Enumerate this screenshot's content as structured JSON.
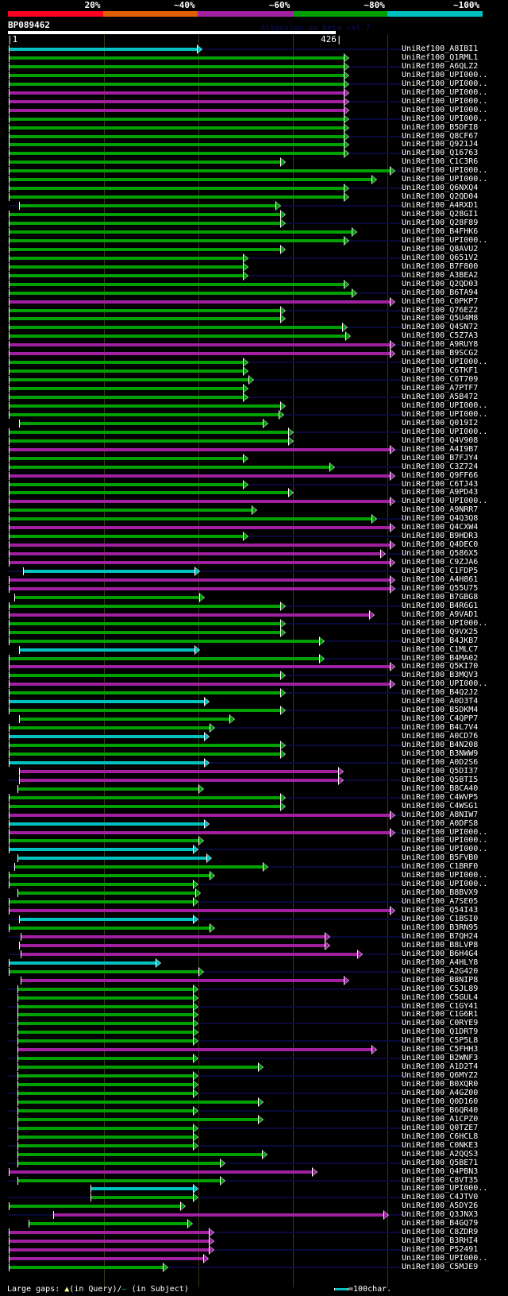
{
  "legend": {
    "labels": [
      "20%",
      "~40%",
      "~60%",
      "~80%",
      "~100%"
    ],
    "colors": [
      "#ff0020",
      "#e06000",
      "#a020a0",
      "#00a000",
      "#00c0c0"
    ]
  },
  "query": {
    "name": "BP089462",
    "start": "1",
    "end": "426",
    "length": 426
  },
  "watermark": "AlignView.pm Beta rel.7",
  "footer": {
    "gaps_label": "Large gaps:",
    "query_gap": "(in Query)/",
    "subject_gap": "(in Subject)",
    "scale_label": "=100char."
  },
  "hits": [
    {
      "name": "UniRef100_A8IBI1",
      "c": 4,
      "s": 1,
      "e": 200
    },
    {
      "name": "UniRef100_Q1RML1",
      "c": 3,
      "s": 1,
      "e": 356
    },
    {
      "name": "UniRef100_A6QLZ2",
      "c": 3,
      "s": 1,
      "e": 356
    },
    {
      "name": "UniRef100_UPI000..",
      "c": 3,
      "s": 1,
      "e": 356
    },
    {
      "name": "UniRef100_UPI000..",
      "c": 3,
      "s": 1,
      "e": 356
    },
    {
      "name": "UniRef100_UPI000..",
      "c": 2,
      "s": 1,
      "e": 356
    },
    {
      "name": "UniRef100_UPI000..",
      "c": 2,
      "s": 1,
      "e": 356
    },
    {
      "name": "UniRef100_UPI000..",
      "c": 2,
      "s": 1,
      "e": 356
    },
    {
      "name": "UniRef100_UPI000..",
      "c": 3,
      "s": 1,
      "e": 356
    },
    {
      "name": "UniRef100_B5DFI8",
      "c": 3,
      "s": 1,
      "e": 356
    },
    {
      "name": "UniRef100_Q8CF67",
      "c": 3,
      "s": 1,
      "e": 356
    },
    {
      "name": "UniRef100_Q921J4",
      "c": 3,
      "s": 1,
      "e": 356
    },
    {
      "name": "UniRef100_Q16763",
      "c": 3,
      "s": 1,
      "e": 356
    },
    {
      "name": "UniRef100_C1C3R6",
      "c": 3,
      "s": 1,
      "e": 289
    },
    {
      "name": "UniRef100_UPI000..",
      "c": 3,
      "s": 1,
      "e": 405
    },
    {
      "name": "UniRef100_UPI000..",
      "c": 3,
      "s": 1,
      "e": 385
    },
    {
      "name": "UniRef100_Q6NXQ4",
      "c": 3,
      "s": 1,
      "e": 356
    },
    {
      "name": "UniRef100_Q2QD04",
      "c": 3,
      "s": 1,
      "e": 356
    },
    {
      "name": "UniRef100_A4RXD1",
      "c": 3,
      "s": 12,
      "e": 284
    },
    {
      "name": "UniRef100_Q28GI1",
      "c": 3,
      "s": 1,
      "e": 289
    },
    {
      "name": "UniRef100_Q28F89",
      "c": 3,
      "s": 1,
      "e": 289
    },
    {
      "name": "UniRef100_B4FHK6",
      "c": 3,
      "s": 1,
      "e": 364
    },
    {
      "name": "UniRef100_UPI000..",
      "c": 3,
      "s": 1,
      "e": 356
    },
    {
      "name": "UniRef100_Q8AVU2",
      "c": 3,
      "s": 1,
      "e": 289
    },
    {
      "name": "UniRef100_Q651V2",
      "c": 3,
      "s": 1,
      "e": 249
    },
    {
      "name": "UniRef100_B7F800",
      "c": 3,
      "s": 1,
      "e": 249
    },
    {
      "name": "UniRef100_A3BEA2",
      "c": 3,
      "s": 1,
      "e": 249
    },
    {
      "name": "UniRef100_Q2QD03",
      "c": 3,
      "s": 1,
      "e": 356
    },
    {
      "name": "UniRef100_B6TA94",
      "c": 3,
      "s": 1,
      "e": 364
    },
    {
      "name": "UniRef100_C0PKP7",
      "c": 2,
      "s": 1,
      "e": 405
    },
    {
      "name": "UniRef100_Q76EZ2",
      "c": 3,
      "s": 1,
      "e": 289
    },
    {
      "name": "UniRef100_Q5U4M8",
      "c": 3,
      "s": 1,
      "e": 289
    },
    {
      "name": "UniRef100_Q4SN72",
      "c": 3,
      "s": 1,
      "e": 354
    },
    {
      "name": "UniRef100_C5Z7A3",
      "c": 3,
      "s": 1,
      "e": 358
    },
    {
      "name": "UniRef100_A9RUY8",
      "c": 2,
      "s": 1,
      "e": 405
    },
    {
      "name": "UniRef100_B9SCG2",
      "c": 2,
      "s": 1,
      "e": 405
    },
    {
      "name": "UniRef100_UPI000..",
      "c": 3,
      "s": 1,
      "e": 249
    },
    {
      "name": "UniRef100_C6TKF1",
      "c": 3,
      "s": 1,
      "e": 249
    },
    {
      "name": "UniRef100_C6T709",
      "c": 3,
      "s": 1,
      "e": 255
    },
    {
      "name": "UniRef100_A7PTF7",
      "c": 3,
      "s": 1,
      "e": 249
    },
    {
      "name": "UniRef100_A5B472",
      "c": 3,
      "s": 1,
      "e": 249
    },
    {
      "name": "UniRef100_UPI000..",
      "c": 3,
      "s": 1,
      "e": 289
    },
    {
      "name": "UniRef100_UPI000..",
      "c": 3,
      "s": 1,
      "e": 287
    },
    {
      "name": "UniRef100_Q019I2",
      "c": 3,
      "s": 12,
      "e": 270
    },
    {
      "name": "UniRef100_UPI000..",
      "c": 3,
      "s": 1,
      "e": 297
    },
    {
      "name": "UniRef100_Q4V908",
      "c": 3,
      "s": 1,
      "e": 297
    },
    {
      "name": "UniRef100_A4I9B7",
      "c": 2,
      "s": 1,
      "e": 405
    },
    {
      "name": "UniRef100_B7FJY4",
      "c": 3,
      "s": 1,
      "e": 249
    },
    {
      "name": "UniRef100_C3Z724",
      "c": 3,
      "s": 1,
      "e": 341
    },
    {
      "name": "UniRef100_Q9FF66",
      "c": 2,
      "s": 1,
      "e": 405
    },
    {
      "name": "UniRef100_C6TJ43",
      "c": 3,
      "s": 1,
      "e": 249
    },
    {
      "name": "UniRef100_A9PD43",
      "c": 3,
      "s": 1,
      "e": 297
    },
    {
      "name": "UniRef100_UPI000..",
      "c": 2,
      "s": 1,
      "e": 405
    },
    {
      "name": "UniRef100_A9NRR7",
      "c": 3,
      "s": 1,
      "e": 258
    },
    {
      "name": "UniRef100_Q4Q3Q8",
      "c": 3,
      "s": 1,
      "e": 385
    },
    {
      "name": "UniRef100_Q4CXW4",
      "c": 2,
      "s": 1,
      "e": 405
    },
    {
      "name": "UniRef100_B9HDR3",
      "c": 3,
      "s": 1,
      "e": 249
    },
    {
      "name": "UniRef100_Q4DEC0",
      "c": 2,
      "s": 1,
      "e": 405
    },
    {
      "name": "UniRef100_Q586X5",
      "c": 2,
      "s": 1,
      "e": 395
    },
    {
      "name": "UniRef100_C9ZJA6",
      "c": 2,
      "s": 1,
      "e": 405
    },
    {
      "name": "UniRef100_C1FDP5",
      "c": 4,
      "s": 16,
      "e": 198
    },
    {
      "name": "UniRef100_A4H861",
      "c": 2,
      "s": 1,
      "e": 405
    },
    {
      "name": "UniRef100_Q55U75",
      "c": 2,
      "s": 1,
      "e": 405
    },
    {
      "name": "UniRef100_B7GBG8",
      "c": 3,
      "s": 7,
      "e": 203
    },
    {
      "name": "UniRef100_B4R6G1",
      "c": 3,
      "s": 1,
      "e": 289
    },
    {
      "name": "UniRef100_A9VAD1",
      "c": 2,
      "s": 1,
      "e": 383
    },
    {
      "name": "UniRef100_UPI000..",
      "c": 3,
      "s": 1,
      "e": 289
    },
    {
      "name": "UniRef100_Q9VX25",
      "c": 3,
      "s": 1,
      "e": 289
    },
    {
      "name": "UniRef100_B4JKB7",
      "c": 3,
      "s": 1,
      "e": 330
    },
    {
      "name": "UniRef100_C1MLC7",
      "c": 4,
      "s": 12,
      "e": 198
    },
    {
      "name": "UniRef100_B4MA02",
      "c": 3,
      "s": 1,
      "e": 330
    },
    {
      "name": "UniRef100_Q5KI70",
      "c": 2,
      "s": 1,
      "e": 405
    },
    {
      "name": "UniRef100_B3MQV3",
      "c": 3,
      "s": 1,
      "e": 289
    },
    {
      "name": "UniRef100_UPI000..",
      "c": 2,
      "s": 1,
      "e": 405
    },
    {
      "name": "UniRef100_B4Q2J2",
      "c": 3,
      "s": 1,
      "e": 289
    },
    {
      "name": "UniRef100_A0D3T4",
      "c": 4,
      "s": 1,
      "e": 208
    },
    {
      "name": "UniRef100_B5DKM4",
      "c": 3,
      "s": 1,
      "e": 289
    },
    {
      "name": "UniRef100_C4QPP7",
      "c": 3,
      "s": 12,
      "e": 235
    },
    {
      "name": "UniRef100_B4L7V4",
      "c": 3,
      "s": 1,
      "e": 214
    },
    {
      "name": "UniRef100_A0CD76",
      "c": 4,
      "s": 1,
      "e": 208
    },
    {
      "name": "UniRef100_B4N208",
      "c": 3,
      "s": 1,
      "e": 289
    },
    {
      "name": "UniRef100_B3NWW9",
      "c": 3,
      "s": 1,
      "e": 289
    },
    {
      "name": "UniRef100_A0D2S6",
      "c": 4,
      "s": 1,
      "e": 208
    },
    {
      "name": "UniRef100_Q5DI37",
      "c": 2,
      "s": 12,
      "e": 350
    },
    {
      "name": "UniRef100_Q5BTI5",
      "c": 2,
      "s": 12,
      "e": 350
    },
    {
      "name": "UniRef100_B8CA40",
      "c": 3,
      "s": 10,
      "e": 202
    },
    {
      "name": "UniRef100_C4WVP5",
      "c": 3,
      "s": 1,
      "e": 289
    },
    {
      "name": "UniRef100_C4WSG1",
      "c": 3,
      "s": 1,
      "e": 289
    },
    {
      "name": "UniRef100_A8NIW7",
      "c": 2,
      "s": 1,
      "e": 405
    },
    {
      "name": "UniRef100_A0DFS8",
      "c": 4,
      "s": 1,
      "e": 208
    },
    {
      "name": "UniRef100_UPI000..",
      "c": 2,
      "s": 1,
      "e": 405
    },
    {
      "name": "UniRef100_UPI000..",
      "c": 3,
      "s": 1,
      "e": 202
    },
    {
      "name": "UniRef100_UPI000..",
      "c": 4,
      "s": 1,
      "e": 196
    },
    {
      "name": "UniRef100_B5FVB0",
      "c": 4,
      "s": 10,
      "e": 210
    },
    {
      "name": "UniRef100_C1BRF0",
      "c": 3,
      "s": 7,
      "e": 270
    },
    {
      "name": "UniRef100_UPI000..",
      "c": 3,
      "s": 1,
      "e": 214
    },
    {
      "name": "UniRef100_UPI000..",
      "c": 3,
      "s": 1,
      "e": 196
    },
    {
      "name": "UniRef100_B8BVX9",
      "c": 3,
      "s": 10,
      "e": 199
    },
    {
      "name": "UniRef100_A7SE05",
      "c": 3,
      "s": 1,
      "e": 196
    },
    {
      "name": "UniRef100_Q54I43",
      "c": 2,
      "s": 1,
      "e": 405
    },
    {
      "name": "UniRef100_C1BSI0",
      "c": 4,
      "s": 12,
      "e": 196
    },
    {
      "name": "UniRef100_B3RN95",
      "c": 3,
      "s": 1,
      "e": 214
    },
    {
      "name": "UniRef100_B7QH24",
      "c": 2,
      "s": 14,
      "e": 336
    },
    {
      "name": "UniRef100_B8LVP8",
      "c": 2,
      "s": 12,
      "e": 336
    },
    {
      "name": "UniRef100_B6H4G4",
      "c": 2,
      "s": 14,
      "e": 370
    },
    {
      "name": "UniRef100_A4HLY8",
      "c": 4,
      "s": 1,
      "e": 157
    },
    {
      "name": "UniRef100_A2G420",
      "c": 3,
      "s": 1,
      "e": 202
    },
    {
      "name": "UniRef100_B8NIP8",
      "c": 2,
      "s": 14,
      "e": 356
    },
    {
      "name": "UniRef100_C5JL89",
      "c": 3,
      "s": 10,
      "e": 196
    },
    {
      "name": "UniRef100_C5GUL4",
      "c": 3,
      "s": 10,
      "e": 196
    },
    {
      "name": "UniRef100_C1GY41",
      "c": 3,
      "s": 10,
      "e": 196
    },
    {
      "name": "UniRef100_C1G6R1",
      "c": 3,
      "s": 10,
      "e": 196
    },
    {
      "name": "UniRef100_C0RYE9",
      "c": 3,
      "s": 10,
      "e": 196
    },
    {
      "name": "UniRef100_Q1DRT9",
      "c": 3,
      "s": 10,
      "e": 196
    },
    {
      "name": "UniRef100_C5P5L8",
      "c": 3,
      "s": 10,
      "e": 196
    },
    {
      "name": "UniRef100_C5FHH3",
      "c": 2,
      "s": 10,
      "e": 385
    },
    {
      "name": "UniRef100_B2WNF3",
      "c": 3,
      "s": 10,
      "e": 196
    },
    {
      "name": "UniRef100_A1D2T4",
      "c": 3,
      "s": 10,
      "e": 265
    },
    {
      "name": "UniRef100_Q6MYZ2",
      "c": 3,
      "s": 10,
      "e": 196
    },
    {
      "name": "UniRef100_B0XQR0",
      "c": 3,
      "s": 10,
      "e": 196
    },
    {
      "name": "UniRef100_A4GZ00",
      "c": 3,
      "s": 10,
      "e": 196
    },
    {
      "name": "UniRef100_Q0D160",
      "c": 3,
      "s": 10,
      "e": 265
    },
    {
      "name": "UniRef100_B6QR40",
      "c": 3,
      "s": 10,
      "e": 196
    },
    {
      "name": "UniRef100_A1CPZ0",
      "c": 3,
      "s": 10,
      "e": 265
    },
    {
      "name": "UniRef100_Q0TZE7",
      "c": 3,
      "s": 10,
      "e": 196
    },
    {
      "name": "UniRef100_C6HCL8",
      "c": 3,
      "s": 10,
      "e": 196
    },
    {
      "name": "UniRef100_C0NKE3",
      "c": 3,
      "s": 10,
      "e": 196
    },
    {
      "name": "UniRef100_A2QQS3",
      "c": 3,
      "s": 10,
      "e": 269
    },
    {
      "name": "UniRef100_Q5BE71",
      "c": 3,
      "s": 10,
      "e": 225
    },
    {
      "name": "UniRef100_Q4PBN3",
      "c": 2,
      "s": 1,
      "e": 322
    },
    {
      "name": "UniRef100_C8VT35",
      "c": 3,
      "s": 10,
      "e": 225
    },
    {
      "name": "UniRef100_UPI000..",
      "c": 4,
      "s": 88,
      "e": 196
    },
    {
      "name": "UniRef100_C4JTV0",
      "c": 3,
      "s": 88,
      "e": 196
    },
    {
      "name": "UniRef100_A5DY26",
      "c": 3,
      "s": 1,
      "e": 183
    },
    {
      "name": "UniRef100_Q3JNX3",
      "c": 2,
      "s": 48,
      "e": 398
    },
    {
      "name": "UniRef100_B4GQ79",
      "c": 3,
      "s": 22,
      "e": 190
    },
    {
      "name": "UniRef100_C8ZDR9",
      "c": 2,
      "s": 1,
      "e": 213
    },
    {
      "name": "UniRef100_B3RHI4",
      "c": 2,
      "s": 1,
      "e": 213
    },
    {
      "name": "UniRef100_P52491",
      "c": 2,
      "s": 1,
      "e": 213
    },
    {
      "name": "UniRef100_UPI000..",
      "c": 2,
      "s": 1,
      "e": 207
    },
    {
      "name": "UniRef100_C5MJE9",
      "c": 3,
      "s": 1,
      "e": 164
    }
  ]
}
